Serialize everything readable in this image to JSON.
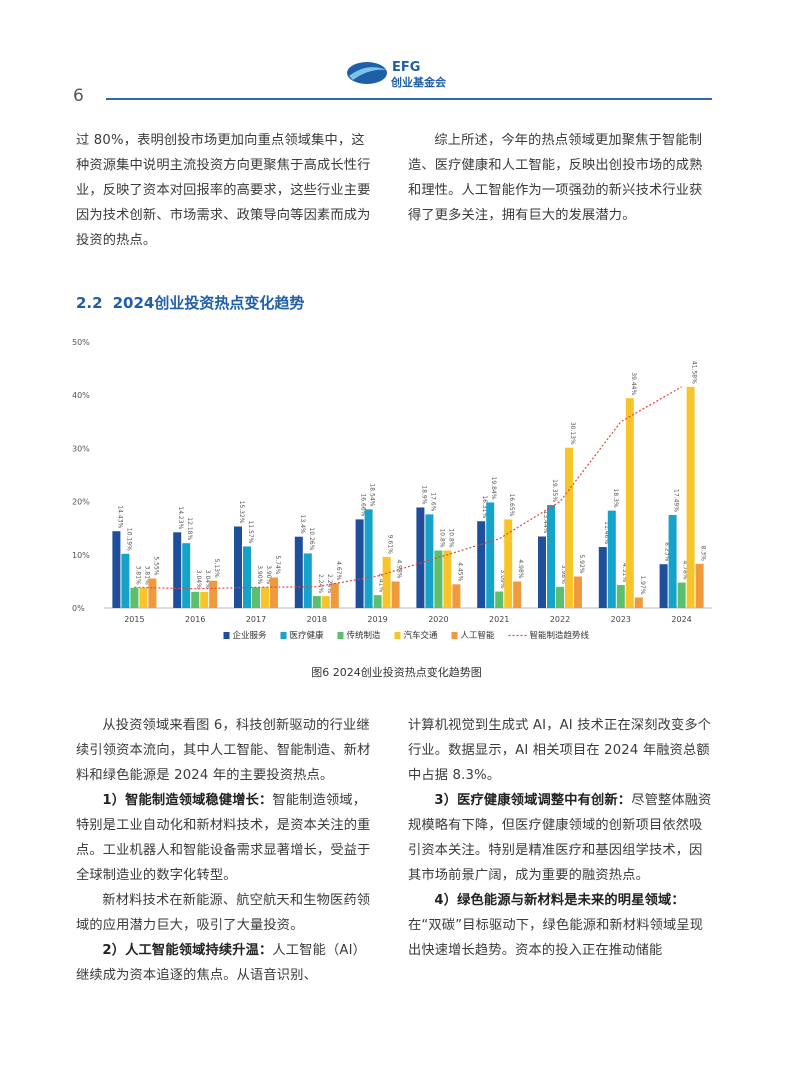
{
  "header": {
    "logo_text_en": "EFG",
    "logo_text_cn": "创业基金会",
    "page_number": "6"
  },
  "top_left": {
    "text": "过 80%，表明创投市场更加向重点领域集中，这种资源集中说明主流投资方向更聚焦于高成长性行业，反映了资本对回报率的高要求，这些行业主要因为技术创新、市场需求、政策导向等因素而成为投资的热点。"
  },
  "top_right": {
    "text": "综上所述，今年的热点领域更加聚焦于智能制造、医疗健康和人工智能，反映出创投市场的成熟和理性。人工智能作为一项强劲的新兴技术行业获得了更多关注，拥有巨大的发展潜力。"
  },
  "section": {
    "number": "2.2",
    "title": "2024创业投资热点变化趋势"
  },
  "chart_data": {
    "type": "bar",
    "title": "",
    "xlabel": "",
    "ylabel": "",
    "ylim": [
      0,
      50
    ],
    "yticks": [
      "0%",
      "10%",
      "20%",
      "30%",
      "40%",
      "50%"
    ],
    "grid": false,
    "legend_position": "bottom",
    "categories": [
      "2015",
      "2016",
      "2017",
      "2018",
      "2019",
      "2020",
      "2021",
      "2022",
      "2023",
      "2024"
    ],
    "series": [
      {
        "name": "企业服务",
        "color": "#1f4e9a",
        "values": [
          14.43,
          14.23,
          15.32,
          13.4,
          16.66,
          18.9,
          16.31,
          13.44,
          11.46,
          8.23
        ],
        "labels": [
          "14.43%",
          "14.23%",
          "15.32%",
          "13.4%",
          "16.66%",
          "18.9%",
          "16.31%",
          "13.44%",
          "11.46%",
          "8.23%"
        ]
      },
      {
        "name": "医疗健康",
        "color": "#15a3c9",
        "values": [
          10.19,
          12.18,
          11.57,
          10.26,
          18.54,
          17.6,
          19.84,
          19.35,
          18.3,
          17.49
        ],
        "labels": [
          "10.19%",
          "12.18%",
          "11.57%",
          "10.26%",
          "18.54%",
          "17.6%",
          "19.84%",
          "19.35%",
          "18.3%",
          "17.49%"
        ]
      },
      {
        "name": "传统制造",
        "color": "#5cbf6e",
        "values": [
          3.81,
          3.04,
          3.9,
          2.24,
          2.41,
          10.8,
          3.09,
          3.98,
          4.31,
          4.78
        ],
        "labels": [
          "3.81%",
          "3.04%",
          "3.90%",
          "2.24%",
          "2.41%",
          "10.8%",
          "3.09%",
          "3.98%",
          "4.31%",
          "4.78%"
        ]
      },
      {
        "name": "汽车交通",
        "color": "#f7c52a",
        "values": [
          3.81,
          3.04,
          3.9,
          2.24,
          9.61,
          10.8,
          16.65,
          30.13,
          39.44,
          41.58
        ],
        "labels": [
          "3.81%",
          "3.04%",
          "3.90%",
          "2.24%",
          "9.61%",
          "10.8%",
          "16.65%",
          "30.13%",
          "39.44%",
          "41.58%"
        ]
      },
      {
        "name": "人工智能",
        "color": "#ef9a3c",
        "values": [
          5.55,
          5.13,
          5.74,
          4.67,
          4.98,
          4.45,
          4.98,
          5.92,
          1.97,
          8.3
        ],
        "labels": [
          "5.55%",
          "5.13%",
          "5.74%",
          "4.67%",
          "4.98%",
          "4.45%",
          "4.98%",
          "5.92%",
          "1.97%",
          "8.3%"
        ]
      }
    ],
    "trendline": {
      "name": "智能制造趋势线",
      "color": "#e0483c",
      "values": [
        3.9,
        3.6,
        3.9,
        4.0,
        6.0,
        9.5,
        13.0,
        20.0,
        35.0,
        41.58
      ]
    },
    "label_color": "#555555",
    "axis_color": "#bbbbbb"
  },
  "figure_caption": "图6   2024创业投资热点变化趋势图",
  "bottom_left": {
    "p1": "从投资领域来看图 6，科技创新驱动的行业继续引领资本流向，其中人工智能、智能制造、新材料和绿色能源是 2024 年的主要投资热点。",
    "p2_head": "1）智能制造领域稳健增长：",
    "p2_body": "智能制造领域，特别是工业自动化和新材料技术，是资本关注的重点。工业机器人和智能设备需求显著增长，受益于全球制造业的数字化转型。",
    "p3": "新材料技术在新能源、航空航天和生物医药领域的应用潜力巨大，吸引了大量投资。",
    "p4_head": "2）人工智能领域持续升温：",
    "p4_body": "人工智能（AI）继续成为资本追逐的焦点。从语音识别、"
  },
  "bottom_right": {
    "p1": "计算机视觉到生成式 AI，AI 技术正在深刻改变多个行业。数据显示，AI 相关项目在 2024 年融资总额中占据 8.3%。",
    "p2_head": "3）医疗健康领域调整中有创新：",
    "p2_body": "尽管整体融资规模略有下降，但医疗健康领域的创新项目依然吸引资本关注。特别是精准医疗和基因组学技术，因其市场前景广阔，成为重要的融资热点。",
    "p3_head": "4）绿色能源与新材料是未来的明星领域：",
    "p3_body": "在“双碳”目标驱动下，绿色能源和新材料领域呈现出快速增长趋势。资本的投入正在推动储能"
  }
}
